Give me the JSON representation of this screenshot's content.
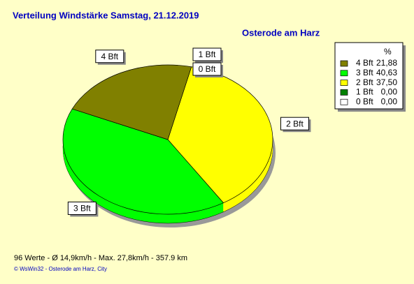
{
  "chart_data": {
    "type": "pie",
    "title": "Verteilung Windstärke  Samstag, 21.12.2019",
    "subtitle": "Osterode am Harz",
    "legend_header": "%",
    "categories": [
      "4 Bft",
      "3 Bft",
      "2 Bft",
      "1 Bft",
      "0 Bft"
    ],
    "values": [
      21.88,
      40.63,
      37.5,
      0.0,
      0.0
    ],
    "value_labels": [
      "21,88",
      "40,63",
      "37,50",
      "0,00",
      "0,00"
    ],
    "colors": [
      "#808000",
      "#00ff00",
      "#ffff00",
      "#008000",
      "#ffffff"
    ],
    "legend": "top-right",
    "footer": "96 Werte   -   Ø 14,9km/h   -   Max. 27,8km/h   -   357.9 km",
    "copyright": "© WsWin32   -   Osterode am Harz, City"
  }
}
